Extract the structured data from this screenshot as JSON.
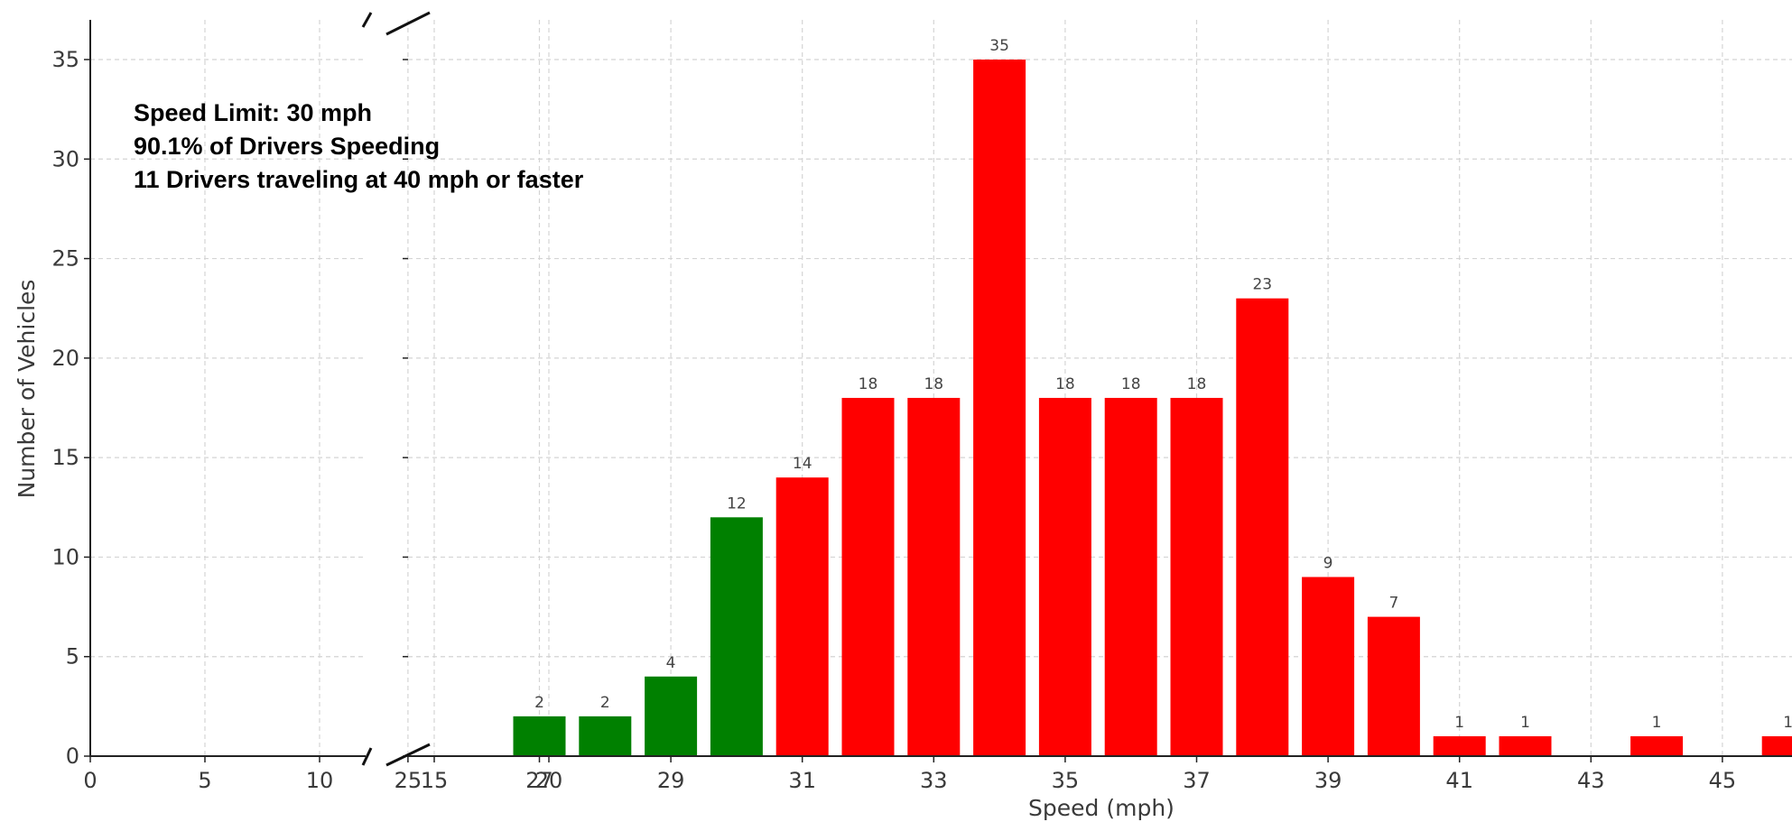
{
  "chart_data": {
    "type": "bar",
    "xlabel": "Speed (mph)",
    "ylabel": "Number of Vehicles",
    "ylim": [
      0,
      37
    ],
    "yticks": [
      0,
      5,
      10,
      15,
      20,
      25,
      30,
      35
    ],
    "broken_x_axis": true,
    "left_panel": {
      "xlim": [
        0,
        24
      ],
      "xticks": [
        "0",
        "5",
        "10",
        "15",
        "20"
      ]
    },
    "right_panel": {
      "xlim": [
        25,
        46
      ],
      "xticks": [
        "25",
        "27",
        "29",
        "31",
        "33",
        "35",
        "37",
        "39",
        "41",
        "43",
        "45"
      ]
    },
    "grid": true,
    "bars": [
      {
        "x": 27,
        "value": 2,
        "color": "#008000"
      },
      {
        "x": 28,
        "value": 2,
        "color": "#008000"
      },
      {
        "x": 29,
        "value": 4,
        "color": "#008000"
      },
      {
        "x": 30,
        "value": 12,
        "color": "#008000"
      },
      {
        "x": 31,
        "value": 14,
        "color": "#ff0000"
      },
      {
        "x": 32,
        "value": 18,
        "color": "#ff0000"
      },
      {
        "x": 33,
        "value": 18,
        "color": "#ff0000"
      },
      {
        "x": 34,
        "value": 35,
        "color": "#ff0000"
      },
      {
        "x": 35,
        "value": 18,
        "color": "#ff0000"
      },
      {
        "x": 36,
        "value": 18,
        "color": "#ff0000"
      },
      {
        "x": 37,
        "value": 18,
        "color": "#ff0000"
      },
      {
        "x": 38,
        "value": 23,
        "color": "#ff0000"
      },
      {
        "x": 39,
        "value": 9,
        "color": "#ff0000"
      },
      {
        "x": 40,
        "value": 7,
        "color": "#ff0000"
      },
      {
        "x": 41,
        "value": 1,
        "color": "#ff0000"
      },
      {
        "x": 42,
        "value": 1,
        "color": "#ff0000"
      },
      {
        "x": 44,
        "value": 1,
        "color": "#ff0000"
      },
      {
        "x": 46,
        "value": 1,
        "color": "#ff0000"
      }
    ],
    "annotations": [
      "Speed Limit: 30 mph",
      "90.1% of Drivers Speeding",
      "11 Drivers traveling at 40 mph or faster"
    ]
  }
}
